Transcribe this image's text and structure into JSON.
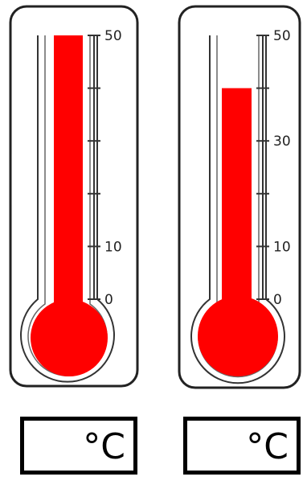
{
  "thermometers": [
    {
      "scale": {
        "min": 0,
        "max": 50
      },
      "ticks": [
        0,
        10,
        20,
        30,
        40,
        50
      ],
      "tick_labels": {
        "0": "0",
        "10": "10",
        "50": "50"
      },
      "reading": 50,
      "colors": {
        "liquid": "#ff0000",
        "outline": "#222222"
      }
    },
    {
      "scale": {
        "min": 0,
        "max": 50
      },
      "ticks": [
        0,
        10,
        20,
        30,
        40,
        50
      ],
      "tick_labels": {
        "0": "0",
        "10": "10",
        "30": "30",
        "50": "50"
      },
      "reading": 40,
      "colors": {
        "liquid": "#ff0000",
        "outline": "#222222"
      }
    }
  ],
  "answer_boxes": [
    {
      "value": "",
      "unit": "°C"
    },
    {
      "value": "",
      "unit": "°C"
    }
  ]
}
